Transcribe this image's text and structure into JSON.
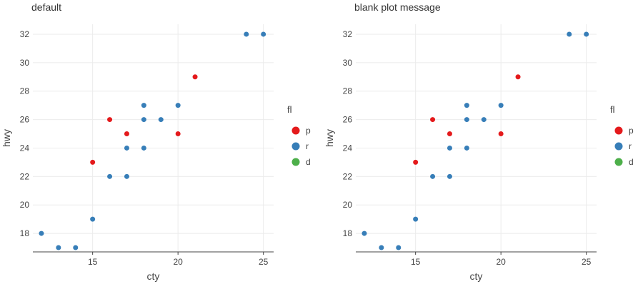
{
  "chart_data": [
    {
      "type": "scatter",
      "title": "default",
      "xlabel": "cty",
      "ylabel": "hwy",
      "xlim": [
        11.5,
        25.6
      ],
      "ylim": [
        16.7,
        32.7
      ],
      "xticks": [
        15,
        20,
        25
      ],
      "yticks": [
        18,
        20,
        22,
        24,
        26,
        28,
        30,
        32
      ],
      "grid": true,
      "legend": {
        "title": "fl",
        "placement": "right",
        "entries": [
          {
            "label": "p",
            "color": "#e41a1c"
          },
          {
            "label": "r",
            "color": "#377eb8"
          },
          {
            "label": "d",
            "color": "#4daf4a"
          }
        ]
      },
      "series": [
        {
          "name": "p",
          "color": "#e41a1c",
          "points": [
            [
              15,
              23
            ],
            [
              16,
              26
            ],
            [
              17,
              25
            ],
            [
              20,
              25
            ],
            [
              21,
              29
            ]
          ]
        },
        {
          "name": "r",
          "color": "#377eb8",
          "points": [
            [
              12,
              18
            ],
            [
              13,
              17
            ],
            [
              14,
              17
            ],
            [
              15,
              19
            ],
            [
              16,
              22
            ],
            [
              17,
              22
            ],
            [
              17,
              24
            ],
            [
              18,
              24
            ],
            [
              18,
              26
            ],
            [
              18,
              27
            ],
            [
              19,
              26
            ],
            [
              20,
              27
            ],
            [
              24,
              32
            ],
            [
              25,
              32
            ]
          ]
        },
        {
          "name": "d",
          "color": "#4daf4a",
          "points": []
        }
      ]
    },
    {
      "type": "scatter",
      "title": "blank plot message",
      "xlabel": "cty",
      "ylabel": "hwy",
      "xlim": [
        11.5,
        25.6
      ],
      "ylim": [
        16.7,
        32.7
      ],
      "xticks": [
        15,
        20,
        25
      ],
      "yticks": [
        18,
        20,
        22,
        24,
        26,
        28,
        30,
        32
      ],
      "grid": true,
      "legend": {
        "title": "fl",
        "placement": "right",
        "entries": [
          {
            "label": "p",
            "color": "#e41a1c"
          },
          {
            "label": "r",
            "color": "#377eb8"
          },
          {
            "label": "d",
            "color": "#4daf4a"
          }
        ]
      },
      "series": [
        {
          "name": "p",
          "color": "#e41a1c",
          "points": [
            [
              15,
              23
            ],
            [
              16,
              26
            ],
            [
              17,
              25
            ],
            [
              20,
              25
            ],
            [
              21,
              29
            ]
          ]
        },
        {
          "name": "r",
          "color": "#377eb8",
          "points": [
            [
              12,
              18
            ],
            [
              13,
              17
            ],
            [
              14,
              17
            ],
            [
              15,
              19
            ],
            [
              16,
              22
            ],
            [
              17,
              22
            ],
            [
              17,
              24
            ],
            [
              18,
              24
            ],
            [
              18,
              26
            ],
            [
              18,
              27
            ],
            [
              19,
              26
            ],
            [
              20,
              27
            ],
            [
              24,
              32
            ],
            [
              25,
              32
            ]
          ]
        },
        {
          "name": "d",
          "color": "#4daf4a",
          "points": []
        }
      ]
    }
  ]
}
